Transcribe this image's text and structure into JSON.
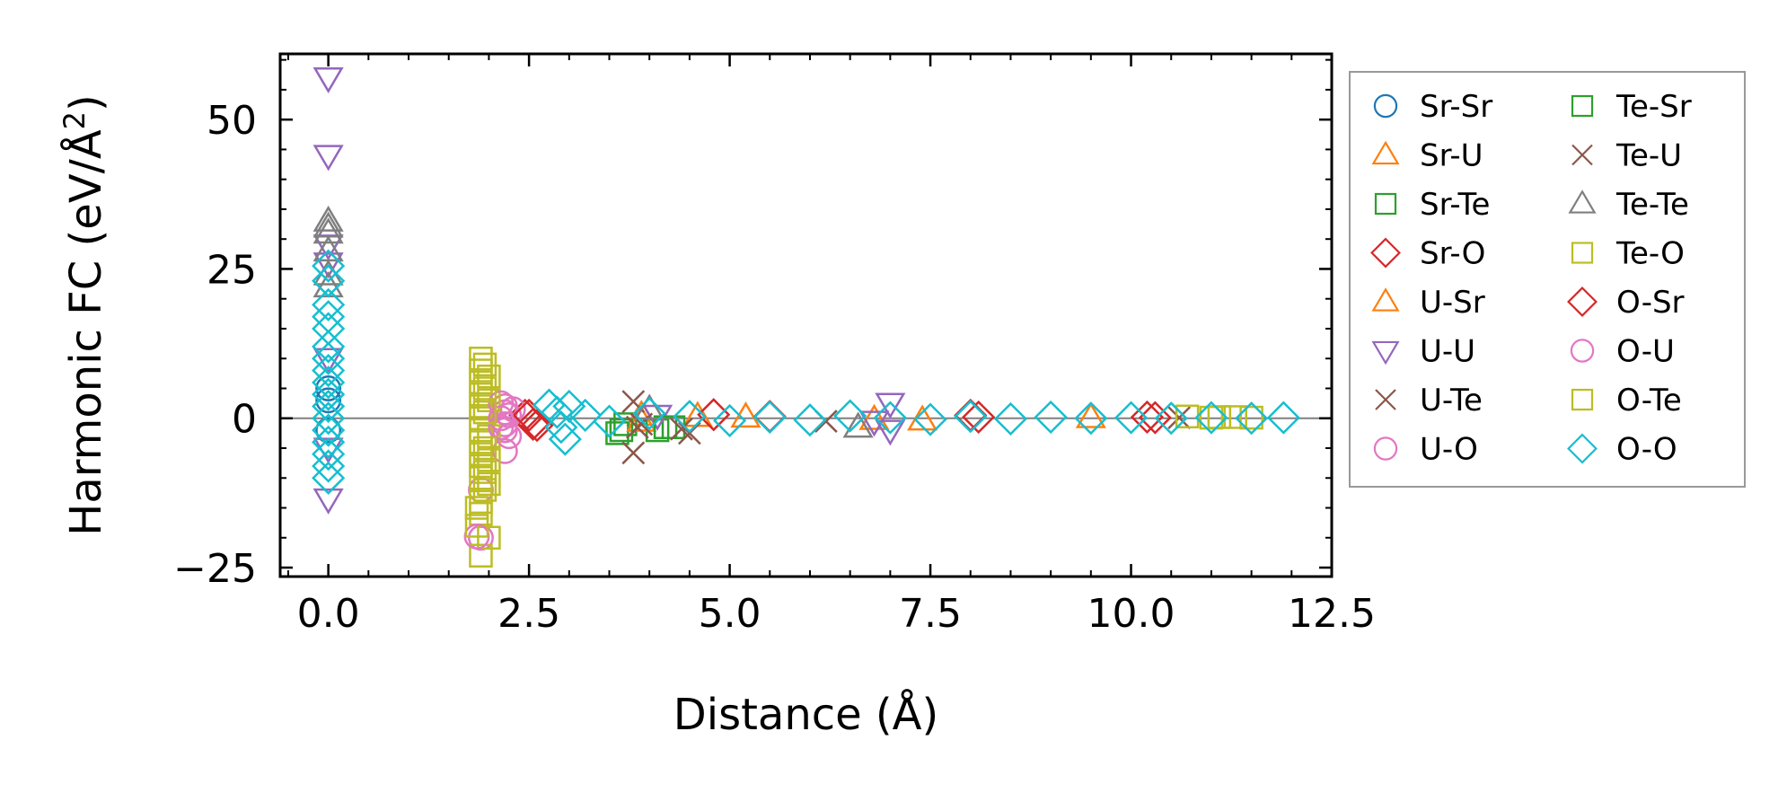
{
  "chart_data": {
    "type": "scatter",
    "xlabel": "Distance (Å)",
    "ylabel_parts": [
      "Harmonic FC (eV/Å",
      "2",
      ")"
    ],
    "xlim": [
      -0.6,
      12.5
    ],
    "ylim": [
      -26.5,
      61
    ],
    "xticks": [
      0.0,
      2.5,
      5.0,
      7.5,
      10.0,
      12.5
    ],
    "xtick_labels": [
      "0.0",
      "2.5",
      "5.0",
      "7.5",
      "10.0",
      "12.5"
    ],
    "yticks": [
      -25,
      0,
      25,
      50
    ],
    "ytick_labels": [
      "−25",
      "0",
      "25",
      "50"
    ],
    "zero_line": 0,
    "legend_position": "outside-right",
    "series": [
      {
        "name": "Sr-Sr",
        "marker": "circle",
        "color": "#1f77b4",
        "points": [
          [
            0,
            3
          ],
          [
            0,
            -2
          ],
          [
            0,
            5
          ]
        ]
      },
      {
        "name": "Sr-U",
        "marker": "triangle-up",
        "color": "#ff7f0e",
        "points": [
          [
            3.9,
            0.5
          ],
          [
            4.6,
            0.3
          ],
          [
            6.8,
            -0.2
          ],
          [
            9.5,
            0.1
          ]
        ]
      },
      {
        "name": "Sr-Te",
        "marker": "square",
        "color": "#2ca02c",
        "points": [
          [
            3.6,
            -2.5
          ],
          [
            3.7,
            -1.0
          ],
          [
            4.1,
            -2.0
          ],
          [
            4.3,
            -1.5
          ]
        ]
      },
      {
        "name": "Sr-O",
        "marker": "diamond",
        "color": "#d62728",
        "points": [
          [
            2.45,
            0.5
          ],
          [
            2.55,
            -1.0
          ],
          [
            4.8,
            0.6
          ],
          [
            8.1,
            0.2
          ],
          [
            10.3,
            0.1
          ]
        ]
      },
      {
        "name": "U-Sr",
        "marker": "triangle-up",
        "color": "#ff7f0e",
        "points": [
          [
            3.9,
            -0.5
          ],
          [
            5.2,
            0.2
          ],
          [
            7.4,
            -0.3
          ]
        ]
      },
      {
        "name": "U-U",
        "marker": "triangle-down",
        "color": "#9467bd",
        "points": [
          [
            0,
            57
          ],
          [
            0,
            44
          ],
          [
            0,
            29
          ],
          [
            0,
            26
          ],
          [
            0,
            -13.5
          ],
          [
            0,
            10
          ],
          [
            0,
            -5
          ],
          [
            7.0,
            2.5
          ],
          [
            7.0,
            -2.0
          ],
          [
            6.8,
            -0.5
          ],
          [
            4.1,
            0.5
          ]
        ]
      },
      {
        "name": "U-Te",
        "marker": "x",
        "color": "#8c564b",
        "points": [
          [
            3.8,
            2.8
          ],
          [
            3.8,
            -5.8
          ],
          [
            3.9,
            -1.0
          ],
          [
            4.5,
            -2.5
          ],
          [
            6.2,
            -0.5
          ],
          [
            10.6,
            0.1
          ]
        ]
      },
      {
        "name": "U-O",
        "marker": "circle",
        "color": "#e377c2",
        "points": [
          [
            2.2,
            2.0
          ],
          [
            2.2,
            1.0
          ],
          [
            2.2,
            -1.0
          ],
          [
            2.2,
            -2.0
          ],
          [
            2.2,
            -5.5
          ],
          [
            2.25,
            0.5
          ],
          [
            2.3,
            1.5
          ],
          [
            1.9,
            -12
          ],
          [
            1.9,
            -20
          ]
        ]
      },
      {
        "name": "Te-Sr",
        "marker": "square",
        "color": "#2ca02c",
        "points": [
          [
            3.65,
            -2.0
          ],
          [
            4.2,
            -1.5
          ]
        ]
      },
      {
        "name": "Te-U",
        "marker": "x",
        "color": "#8c564b",
        "points": [
          [
            3.85,
            -1.5
          ],
          [
            4.4,
            -1.8
          ]
        ]
      },
      {
        "name": "Te-Te",
        "marker": "triangle-up",
        "color": "#7f7f7f",
        "points": [
          [
            0,
            33
          ],
          [
            0,
            32
          ],
          [
            0,
            31
          ],
          [
            0,
            28
          ],
          [
            0,
            24
          ],
          [
            0,
            22
          ],
          [
            4.0,
            1.5
          ],
          [
            6.6,
            -1.5
          ]
        ]
      },
      {
        "name": "Te-O",
        "marker": "square",
        "color": "#bcbd22",
        "points": [
          [
            1.9,
            10
          ],
          [
            1.9,
            8
          ],
          [
            1.9,
            6
          ],
          [
            1.9,
            4
          ],
          [
            1.9,
            2
          ],
          [
            1.9,
            0
          ],
          [
            1.9,
            -2
          ],
          [
            1.9,
            -4
          ],
          [
            1.9,
            -6
          ],
          [
            1.9,
            -8
          ],
          [
            1.9,
            -10
          ],
          [
            1.9,
            -14
          ],
          [
            1.9,
            -16
          ],
          [
            1.9,
            -23
          ],
          [
            2.0,
            7
          ],
          [
            2.0,
            3
          ],
          [
            2.0,
            -3
          ],
          [
            2.0,
            -7
          ],
          [
            2.0,
            -11
          ],
          [
            2.0,
            -20
          ],
          [
            10.7,
            0.3
          ],
          [
            11.0,
            0.1
          ],
          [
            11.3,
            0.2
          ]
        ]
      },
      {
        "name": "O-Sr",
        "marker": "diamond",
        "color": "#d62728",
        "points": [
          [
            2.5,
            0.5
          ],
          [
            2.6,
            -1.2
          ],
          [
            5.5,
            0.3
          ],
          [
            8.0,
            0.5
          ],
          [
            10.2,
            0.2
          ]
        ]
      },
      {
        "name": "O-U",
        "marker": "circle",
        "color": "#e377c2",
        "points": [
          [
            2.15,
            2.5
          ],
          [
            2.15,
            0.0
          ],
          [
            2.15,
            -1.5
          ],
          [
            2.25,
            -3.0
          ],
          [
            1.85,
            -19.8
          ]
        ]
      },
      {
        "name": "O-Te",
        "marker": "square",
        "color": "#bcbd22",
        "points": [
          [
            1.95,
            9
          ],
          [
            1.95,
            5
          ],
          [
            1.95,
            1
          ],
          [
            1.95,
            -5
          ],
          [
            1.95,
            -9
          ],
          [
            1.95,
            -12
          ],
          [
            1.85,
            -15
          ],
          [
            1.85,
            -18
          ],
          [
            11.1,
            0.2
          ],
          [
            11.5,
            0.1
          ]
        ]
      },
      {
        "name": "O-O",
        "marker": "diamond",
        "color": "#17becf",
        "points": [
          [
            0,
            25.5
          ],
          [
            0,
            23
          ],
          [
            0,
            19
          ],
          [
            0,
            17
          ],
          [
            0,
            15
          ],
          [
            0,
            12
          ],
          [
            0,
            10
          ],
          [
            0,
            8
          ],
          [
            0,
            6
          ],
          [
            0,
            4
          ],
          [
            0,
            2
          ],
          [
            0,
            0
          ],
          [
            0,
            -2
          ],
          [
            0,
            -4
          ],
          [
            0,
            -6
          ],
          [
            0,
            -8
          ],
          [
            0,
            -10
          ],
          [
            2.75,
            2.2
          ],
          [
            2.85,
            1.0
          ],
          [
            2.9,
            -1.5
          ],
          [
            2.95,
            -3.5
          ],
          [
            3.0,
            2.0
          ],
          [
            3.2,
            0.5
          ],
          [
            3.5,
            -0.5
          ],
          [
            4.0,
            0.8
          ],
          [
            4.5,
            0.3
          ],
          [
            5.0,
            -0.4
          ],
          [
            5.5,
            0.2
          ],
          [
            6.0,
            -0.3
          ],
          [
            6.5,
            0.4
          ],
          [
            7.0,
            0.1
          ],
          [
            7.5,
            -0.2
          ],
          [
            8.0,
            0.3
          ],
          [
            8.5,
            -0.1
          ],
          [
            9.0,
            0.2
          ],
          [
            9.5,
            0.0
          ],
          [
            10.0,
            0.1
          ],
          [
            10.5,
            0.0
          ],
          [
            11.0,
            0.1
          ],
          [
            11.5,
            0.0
          ],
          [
            11.9,
            0.1
          ]
        ]
      }
    ]
  }
}
